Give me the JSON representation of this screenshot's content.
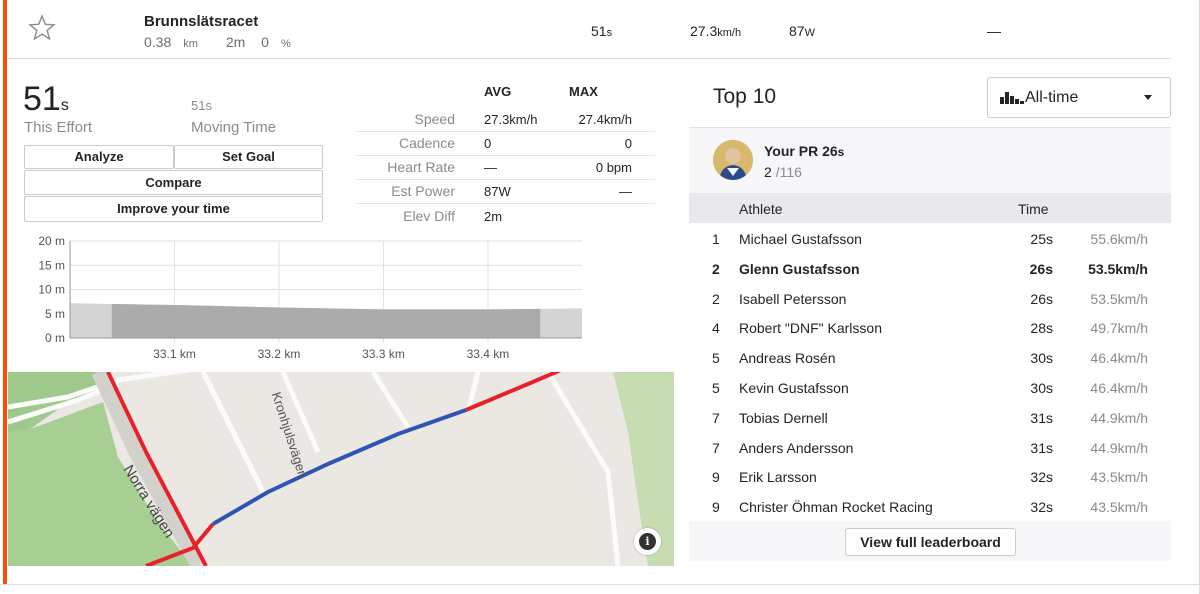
{
  "segment": {
    "name": "Brunnslätsracet",
    "distance": "0.38",
    "distance_unit": "km",
    "elev_diff": "2m",
    "grade": "0",
    "grade_unit": "%",
    "time": "51",
    "time_unit": "s",
    "speed": "27.3",
    "speed_unit": "km/h",
    "power": "87",
    "power_unit": "W",
    "extra": "—"
  },
  "effort": {
    "time": "51",
    "time_unit": "s",
    "label": "This Effort",
    "moving_time": "51s",
    "moving_label": "Moving Time"
  },
  "buttons": {
    "analyze": "Analyze",
    "set_goal": "Set Goal",
    "compare": "Compare",
    "improve": "Improve your time"
  },
  "stats": {
    "avg_header": "AVG",
    "max_header": "MAX",
    "rows": [
      {
        "label": "Speed",
        "avg": "27.3km/h",
        "max": "27.4km/h"
      },
      {
        "label": "Cadence",
        "avg": "0",
        "max": "0"
      },
      {
        "label": "Heart Rate",
        "avg": "—",
        "max": "0 bpm"
      },
      {
        "label": "Est Power",
        "avg": "87W",
        "max": "—"
      },
      {
        "label": "Elev Diff",
        "avg": "2m",
        "max": ""
      }
    ]
  },
  "chart_data": {
    "type": "area",
    "title": "",
    "xlabel": "",
    "ylabel": "",
    "y_ticks": [
      "20 m",
      "15 m",
      "10 m",
      "5 m",
      "0 m"
    ],
    "x_ticks": [
      "33.1 km",
      "33.2 km",
      "33.3 km",
      "33.4 km"
    ],
    "ylim": [
      0,
      20
    ],
    "x": [
      33.0,
      33.04,
      33.1,
      33.2,
      33.3,
      33.4,
      33.45,
      33.49
    ],
    "elevation": [
      7.2,
      7.0,
      6.8,
      6.3,
      5.9,
      5.9,
      6.0,
      6.1
    ],
    "segment_range": [
      33.04,
      33.45
    ],
    "grid": true
  },
  "map": {
    "street_1": "Kronhjulsvägen",
    "street_2": "Norra vägen",
    "info_glyph": "i"
  },
  "leaderboard": {
    "title": "Top 10",
    "filter": "All-time",
    "pr_label": "Your PR 26",
    "pr_unit": "s",
    "pr_rank": "2",
    "pr_total": "/116",
    "col_athlete": "Athlete",
    "col_time": "Time",
    "rows": [
      {
        "rank": "1",
        "name": "Michael Gustafsson",
        "time": "25s",
        "speed": "55.6km/h",
        "me": false
      },
      {
        "rank": "2",
        "name": "Glenn Gustafsson",
        "time": "26s",
        "speed": "53.5km/h",
        "me": true
      },
      {
        "rank": "2",
        "name": "Isabell Petersson",
        "time": "26s",
        "speed": "53.5km/h",
        "me": false
      },
      {
        "rank": "4",
        "name": "Robert \"DNF\" Karlsson",
        "time": "28s",
        "speed": "49.7km/h",
        "me": false
      },
      {
        "rank": "5",
        "name": "Andreas Rosén",
        "time": "30s",
        "speed": "46.4km/h",
        "me": false
      },
      {
        "rank": "5",
        "name": "Kevin Gustafsson",
        "time": "30s",
        "speed": "46.4km/h",
        "me": false
      },
      {
        "rank": "7",
        "name": "Tobias Dernell",
        "time": "31s",
        "speed": "44.9km/h",
        "me": false
      },
      {
        "rank": "7",
        "name": "Anders Andersson",
        "time": "31s",
        "speed": "44.9km/h",
        "me": false
      },
      {
        "rank": "9",
        "name": "Erik Larsson",
        "time": "32s",
        "speed": "43.5km/h",
        "me": false
      },
      {
        "rank": "9",
        "name": "Christer Öhman Rocket Racing",
        "time": "32s",
        "speed": "43.5km/h",
        "me": false
      }
    ],
    "full_button": "View full leaderboard"
  },
  "colors": {
    "accent": "#fc4c02",
    "route_red": "#e8202a",
    "route_blue": "#2f55b4",
    "map_green": "#9fc98c"
  }
}
